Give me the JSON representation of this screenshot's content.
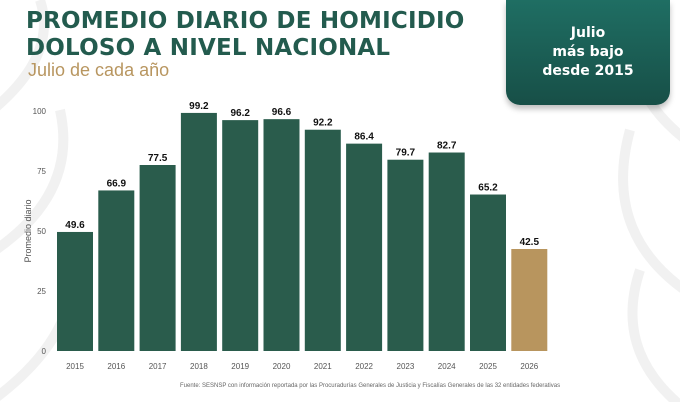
{
  "title_lines": [
    "PROMEDIO DIARIO DE HOMICIDIO",
    "DOLOSO A NIVEL NACIONAL"
  ],
  "subtitle": "Julio de cada año",
  "callout_lines": [
    "Julio",
    "más bajo",
    "desde 2015"
  ],
  "source": "Fuente: SESNSP con información reportada por las Procuradurías Generales de Justicia y Fiscalías Generales de las 32 entidades federativas",
  "colors": {
    "bar": "#2a5c4c",
    "highlight": "#b8955e",
    "title": "#235b4e",
    "subtitle": "#b89660"
  },
  "chart_data": {
    "type": "bar",
    "categories": [
      "2015",
      "2016",
      "2017",
      "2018",
      "2019",
      "2020",
      "2021",
      "2022",
      "2023",
      "2024",
      "2025",
      "2026"
    ],
    "values": [
      49.6,
      66.9,
      77.5,
      99.2,
      96.2,
      96.6,
      92.2,
      86.4,
      79.7,
      82.7,
      65.2,
      42.5
    ],
    "value_labels": [
      "49.6",
      "66.9",
      "77.5",
      "99.2",
      "96.2",
      "96.6",
      "92.2",
      "86.4",
      "79.7",
      "82.7",
      "65.2",
      "42.5"
    ],
    "highlight_index": 11,
    "ylabel": "Promedio diario",
    "yticks": [
      0,
      25,
      50,
      75,
      100
    ],
    "ylim": [
      0,
      100
    ],
    "grid": false,
    "legend": "none"
  }
}
